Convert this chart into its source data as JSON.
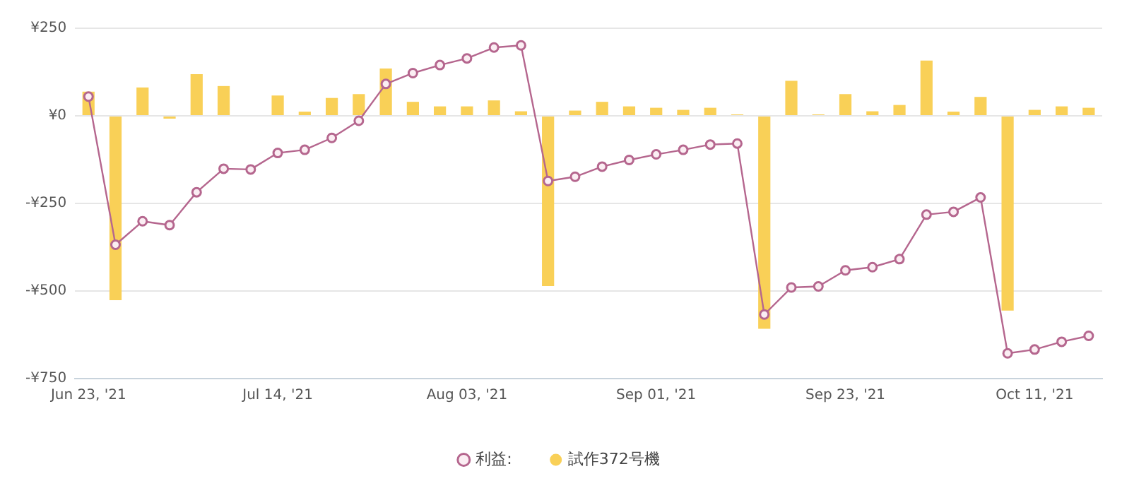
{
  "chart_data": {
    "type": "bar",
    "categories": [
      "Jun 23, '21",
      null,
      null,
      null,
      null,
      null,
      null,
      "Jul 14, '21",
      null,
      null,
      null,
      null,
      null,
      null,
      "Aug 03, '21",
      null,
      null,
      null,
      null,
      null,
      null,
      "Sep 01, '21",
      null,
      null,
      null,
      null,
      null,
      null,
      "Sep 23, '21",
      null,
      null,
      null,
      null,
      null,
      null,
      "Oct 11, '21",
      null,
      null
    ],
    "series": [
      {
        "name": "利益:",
        "type": "line",
        "color": "#b5668e",
        "marker": "circle",
        "values": [
          55,
          -368,
          -301,
          -312,
          -218,
          -151,
          -153,
          -106,
          -97,
          -63,
          -14,
          91,
          122,
          145,
          164,
          195,
          201,
          -186,
          -174,
          -145,
          -126,
          -110,
          -97,
          -82,
          -79,
          -567,
          -490,
          -487,
          -441,
          -432,
          -409,
          -282,
          -274,
          -233,
          -678,
          -667,
          -645,
          -628
        ]
      },
      {
        "name": "試作372号機",
        "color": "#f9d057",
        "values": [
          69,
          -526,
          81,
          -8,
          119,
          85,
          null,
          58,
          12,
          51,
          62,
          135,
          40,
          27,
          27,
          44,
          13,
          -486,
          15,
          40,
          27,
          23,
          17,
          23,
          4,
          -608,
          100,
          4,
          62,
          13,
          31,
          158,
          12,
          54,
          -556,
          17,
          27,
          23
        ]
      }
    ],
    "ylim": [
      -750,
      250
    ],
    "yticks": [
      {
        "value": -750,
        "label": "-¥750"
      },
      {
        "value": -500,
        "label": "-¥500"
      },
      {
        "value": -250,
        "label": "-¥250"
      },
      {
        "value": 0,
        "label": "¥0"
      },
      {
        "value": 250,
        "label": "¥250"
      }
    ],
    "grid": true,
    "legend": "bottom"
  }
}
